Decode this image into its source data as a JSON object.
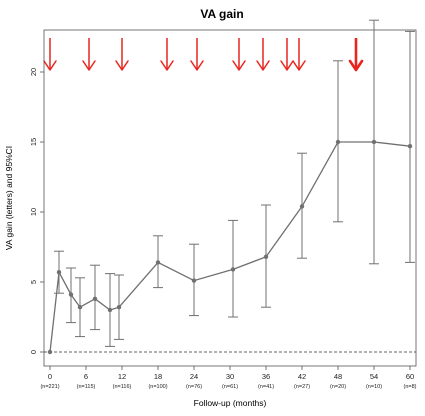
{
  "chart_data": {
    "type": "line",
    "title": "VA gain",
    "xlabel": "Follow-up (months)",
    "ylabel": "VA gain (letters) and 95%CI",
    "xlim": [
      -1,
      61
    ],
    "ylim": [
      -1,
      23
    ],
    "x_ticks": [
      0,
      6,
      12,
      18,
      24,
      30,
      36,
      42,
      48,
      54,
      60
    ],
    "x_tick_labels": [
      "0",
      "6",
      "12",
      "18",
      "24",
      "30",
      "36",
      "42",
      "48",
      "54",
      "60"
    ],
    "x_tick_n_labels": [
      "(n=221)",
      "(n=115)",
      "(n=116)",
      "(n=100)",
      "(n=76)",
      "(n=61)",
      "(n=41)",
      "(n=27)",
      "(n=20)",
      "(n=10)",
      "(n=8)"
    ],
    "y_ticks": [
      0,
      5,
      10,
      15,
      20
    ],
    "y_tick_labels": [
      "0",
      "5",
      "10",
      "15",
      "20"
    ],
    "reference_line": 0,
    "line_color": "#707070",
    "arrow_color": "#e8261f",
    "series": [
      {
        "x": [
          0,
          1.5,
          3.5,
          5,
          7.5,
          10,
          11.5,
          18,
          24,
          30.5,
          36,
          42,
          48,
          54,
          60
        ],
        "mean": [
          0,
          5.7,
          4.1,
          3.2,
          3.8,
          3.0,
          3.2,
          6.4,
          5.1,
          5.9,
          6.8,
          10.4,
          15.0,
          15.0,
          14.7
        ],
        "lower": [
          0,
          4.2,
          2.1,
          1.1,
          1.6,
          0.4,
          0.9,
          4.6,
          2.6,
          2.5,
          3.2,
          6.7,
          9.3,
          6.3,
          6.4
        ],
        "upper": [
          0,
          7.2,
          6.0,
          5.3,
          6.2,
          5.6,
          5.5,
          8.3,
          7.7,
          9.4,
          10.5,
          14.2,
          20.8,
          23.7,
          22.9
        ]
      }
    ],
    "arrows_at_months": [
      0,
      6.5,
      12,
      19.5,
      24.5,
      31.5,
      35.5,
      39.5,
      41.5,
      51
    ],
    "emphasized_arrow_month": 51,
    "grid": false
  }
}
